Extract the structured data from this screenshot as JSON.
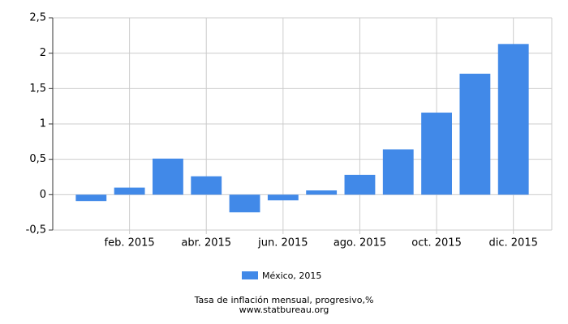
{
  "chart_data": {
    "type": "bar",
    "title": "Tasa de inflación mensual, progresivo,%",
    "source": "www.statbureau.org",
    "categories": [
      null,
      "feb. 2015",
      null,
      "abr. 2015",
      null,
      "jun. 2015",
      null,
      "ago. 2015",
      null,
      "oct. 2015",
      null,
      "dic. 2015"
    ],
    "series": [
      {
        "name": "México, 2015",
        "color": "#4189e8",
        "values": [
          -0.09,
          0.1,
          0.51,
          0.26,
          -0.25,
          -0.08,
          0.06,
          0.28,
          0.64,
          1.16,
          1.71,
          2.13
        ]
      }
    ],
    "ylim": [
      -0.5,
      2.5
    ],
    "yticks": [
      {
        "value": -0.5,
        "label": "-0,5"
      },
      0,
      {
        "value": 0.5,
        "label": "0,5"
      },
      1,
      {
        "value": 1.5,
        "label": "1,5"
      },
      2,
      {
        "value": 2.5,
        "label": "2,5"
      }
    ],
    "grid": true
  }
}
